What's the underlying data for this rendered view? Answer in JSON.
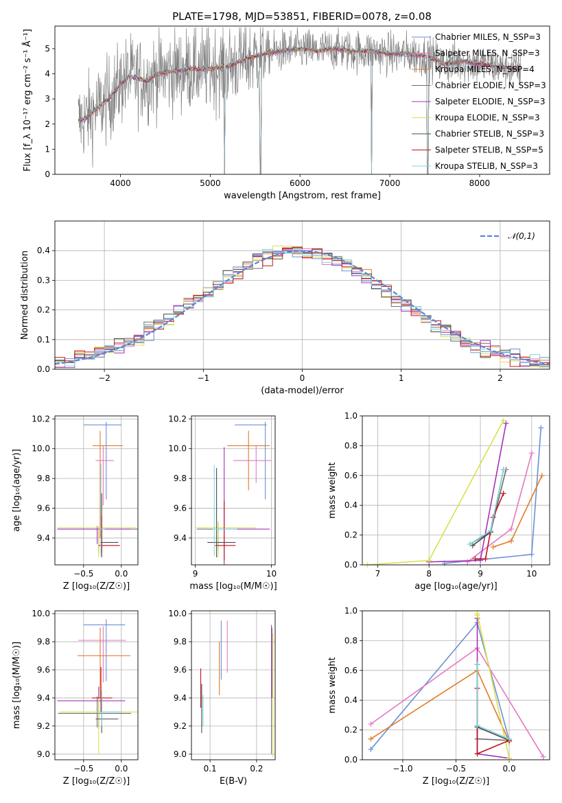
{
  "figure": {
    "title": "PLATE=1798, MJD=53851, FIBERID=0078, z=0.08"
  },
  "colors": {
    "series": [
      "#6a8fd6",
      "#e377c2",
      "#e07b26",
      "#6e6e6e",
      "#a630b8",
      "#d9e04a",
      "#4a4a4a",
      "#c1121f",
      "#7fd6e0"
    ],
    "normal": "#5b84d6",
    "grid": "#b0b0b0"
  },
  "chart_data": [
    {
      "id": "spectrum",
      "type": "line",
      "xlabel": "wavelength [Angstrom, rest frame]",
      "ylabel": "Flux [f_λ 10⁻¹⁷ erg cm⁻² s⁻¹ Å⁻¹]",
      "xlim": [
        3270,
        8780
      ],
      "ylim": [
        0,
        5.9
      ],
      "xticks": [
        4000,
        5000,
        6000,
        7000,
        8000
      ],
      "yticks": [
        0,
        1,
        2,
        3,
        4,
        5
      ],
      "grid": false,
      "legend_position": "top-right",
      "series": [
        {
          "name": "Chabrier MILES, N_SSP=3"
        },
        {
          "name": "Salpeter MILES, N_SSP=3"
        },
        {
          "name": "Kroupa MILES, N_SSP=4"
        },
        {
          "name": "Chabrier ELODIE, N_SSP=3"
        },
        {
          "name": "Salpeter ELODIE, N_SSP=3"
        },
        {
          "name": "Kroupa ELODIE, N_SSP=3"
        },
        {
          "name": "Chabrier STELIB, N_SSP=3"
        },
        {
          "name": "Salpeter STELIB, N_SSP=5"
        },
        {
          "name": "Kroupa STELIB, N_SSP=3"
        }
      ],
      "model_continuum": {
        "x": [
          3500,
          3600,
          3700,
          3800,
          3900,
          4000,
          4100,
          4200,
          4300,
          4400,
          4600,
          4800,
          5000,
          5200,
          5400,
          5600,
          5800,
          6000,
          6200,
          6400,
          6600,
          6800,
          7000,
          7200,
          7400,
          7600,
          7800,
          8000,
          8200,
          8400,
          8500
        ],
        "y": [
          2.1,
          2.2,
          2.5,
          2.8,
          3.1,
          3.6,
          3.9,
          3.8,
          3.7,
          4.0,
          4.1,
          4.2,
          4.2,
          4.3,
          4.6,
          4.8,
          4.9,
          5.0,
          4.9,
          5.0,
          4.9,
          4.9,
          4.8,
          4.8,
          4.7,
          4.4,
          4.5,
          4.4,
          4.3,
          4.2,
          4.2
        ]
      },
      "observed_range": [
        3530,
        8460
      ]
    },
    {
      "id": "residuals",
      "type": "line",
      "xlabel": "(data-model)/error",
      "ylabel": "Normed distribution",
      "xlim": [
        -2.5,
        2.5
      ],
      "ylim": [
        0,
        0.5
      ],
      "xticks": [
        -2,
        -1,
        0,
        1,
        2
      ],
      "yticks": [
        0.0,
        0.1,
        0.2,
        0.3,
        0.4
      ],
      "grid": true,
      "legend_position": "top-right",
      "legend": "𝒩(0,1)",
      "bin_width": 0.1
    },
    {
      "id": "age-vs-Z",
      "type": "scatter",
      "xlabel": "Z [log₁₀(Z/Z☉)]",
      "ylabel": "age  [log₁₀(age/yr)]",
      "xlim": [
        -0.88,
        0.22
      ],
      "ylim": [
        9.22,
        10.22
      ],
      "xticks": [
        -0.5,
        0.0
      ],
      "yticks": [
        9.4,
        9.6,
        9.8,
        10.0,
        10.2
      ],
      "grid": true,
      "points": [
        {
          "x": -0.2,
          "xerr": [
            0.3,
            0.2
          ],
          "y": 10.16,
          "yerr": [
            0.5,
            0.02
          ]
        },
        {
          "x": -0.24,
          "xerr": [
            0.1,
            0.14
          ],
          "y": 9.92,
          "yerr": [
            0.3,
            0.1
          ]
        },
        {
          "x": -0.28,
          "xerr": [
            0.1,
            0.3
          ],
          "y": 10.02,
          "yerr": [
            0.62,
            0.1
          ]
        },
        {
          "x": -0.3,
          "xerr": [
            0.55,
            0.52
          ],
          "y": 9.46,
          "yerr": [
            0.16,
            0.01
          ]
        },
        {
          "x": -0.32,
          "xerr": [
            0.52,
            0.45
          ],
          "y": 9.46,
          "yerr": [
            0.1,
            0.02
          ]
        },
        {
          "x": -0.3,
          "xerr": [
            0.55,
            0.5
          ],
          "y": 9.47,
          "yerr": [
            0.2,
            0.01
          ]
        },
        {
          "x": -0.26,
          "xerr": [
            0.02,
            0.22
          ],
          "y": 9.37,
          "yerr": [
            0.1,
            0.33
          ]
        },
        {
          "x": -0.26,
          "xerr": [
            0.04,
            0.24
          ],
          "y": 9.35,
          "yerr": [
            0.05,
            0.2
          ]
        },
        {
          "x": -0.27,
          "xerr": [
            0.02,
            0.05
          ],
          "y": 9.46,
          "yerr": [
            0.18,
            0.44
          ]
        }
      ]
    },
    {
      "id": "age-vs-mass",
      "type": "scatter",
      "xlabel": "mass [log₁₀(M/M☉)]",
      "ylabel": "",
      "xlim": [
        8.95,
        10.05
      ],
      "ylim": [
        9.22,
        10.22
      ],
      "xticks": [
        9,
        10
      ],
      "yticks": [
        9.4,
        9.6,
        9.8,
        10.0,
        10.2
      ],
      "grid": true,
      "points": [
        {
          "x": 9.92,
          "xerr": [
            0.4,
            0.02
          ],
          "y": 10.16,
          "yerr": [
            0.5,
            0.02
          ]
        },
        {
          "x": 9.8,
          "xerr": [
            0.3,
            0.2
          ],
          "y": 9.92,
          "yerr": [
            0.15,
            0.1
          ]
        },
        {
          "x": 9.7,
          "xerr": [
            0.28,
            0.28
          ],
          "y": 10.02,
          "yerr": [
            0.3,
            0.1
          ]
        },
        {
          "x": 9.3,
          "xerr": [
            0.28,
            0.5
          ],
          "y": 9.46,
          "yerr": [
            0.14,
            0.05
          ]
        },
        {
          "x": 9.38,
          "xerr": [
            0.1,
            0.6
          ],
          "y": 9.46,
          "yerr": [
            0.25,
            0.55
          ]
        },
        {
          "x": 9.3,
          "xerr": [
            0.3,
            0.5
          ],
          "y": 9.47,
          "yerr": [
            0.2,
            0.04
          ]
        },
        {
          "x": 9.28,
          "xerr": [
            0.12,
            0.25
          ],
          "y": 9.37,
          "yerr": [
            0.1,
            0.5
          ]
        },
        {
          "x": 9.38,
          "xerr": [
            0.12,
            0.15
          ],
          "y": 9.35,
          "yerr": [
            0.1,
            0.3
          ]
        },
        {
          "x": 9.25,
          "xerr": [
            0.02,
            0.3
          ],
          "y": 9.46,
          "yerr": [
            0.18,
            0.43
          ]
        }
      ]
    },
    {
      "id": "weight-vs-age",
      "type": "line",
      "xlabel": "age  [log₁₀(age/yr)]",
      "ylabel": "mass weight",
      "xlim": [
        6.7,
        10.35
      ],
      "ylim": [
        0,
        1
      ],
      "xticks": [
        7,
        8,
        9,
        10
      ],
      "yticks": [
        0.0,
        0.2,
        0.4,
        0.6,
        0.8,
        1.0
      ],
      "grid": true,
      "series": [
        {
          "x": [
            8.3,
            10.0,
            10.18
          ],
          "y": [
            0.01,
            0.07,
            0.92
          ]
        },
        {
          "x": [
            8.75,
            9.6,
            10.0
          ],
          "y": [
            0.02,
            0.24,
            0.75
          ]
        },
        {
          "x": [
            9.25,
            9.6,
            10.2
          ],
          "y": [
            0.12,
            0.16,
            0.6
          ]
        },
        {
          "x": [
            8.8,
            9.2,
            9.5
          ],
          "y": [
            0.14,
            0.22,
            0.64
          ]
        },
        {
          "x": [
            8.0,
            9.0,
            9.5
          ],
          "y": [
            0.02,
            0.03,
            0.95
          ]
        },
        {
          "x": [
            6.8,
            8.0,
            9.45
          ],
          "y": [
            0.0,
            0.03,
            0.97
          ]
        },
        {
          "x": [
            8.85,
            9.2,
            9.45
          ],
          "y": [
            0.13,
            0.22,
            0.64
          ]
        },
        {
          "x": [
            8.9,
            9.1,
            9.25,
            9.45
          ],
          "y": [
            0.04,
            0.04,
            0.32,
            0.48
          ]
        },
        {
          "x": [
            8.8,
            9.2,
            9.45
          ],
          "y": [
            0.14,
            0.23,
            0.64
          ]
        }
      ]
    },
    {
      "id": "mass-vs-Z",
      "type": "scatter",
      "xlabel": "Z [log₁₀(Z/Z☉)]",
      "ylabel": "mass [log₁₀(M/M☉)]",
      "xlim": [
        -0.88,
        0.22
      ],
      "ylim": [
        8.96,
        10.02
      ],
      "xticks": [
        -0.5,
        0.0
      ],
      "yticks": [
        9.0,
        9.2,
        9.4,
        9.6,
        9.8,
        10.0
      ],
      "grid": true,
      "points": [
        {
          "x": -0.2,
          "xerr": [
            0.3,
            0.25
          ],
          "y": 9.92,
          "yerr": [
            0.4,
            0.04
          ]
        },
        {
          "x": -0.24,
          "xerr": [
            0.33,
            0.3
          ],
          "y": 9.81,
          "yerr": [
            0.3,
            0.1
          ]
        },
        {
          "x": -0.28,
          "xerr": [
            0.3,
            0.4
          ],
          "y": 9.7,
          "yerr": [
            0.3,
            0.2
          ]
        },
        {
          "x": -0.32,
          "xerr": [
            0.52,
            0.45
          ],
          "y": 9.29,
          "yerr": [
            0.1,
            0.12
          ]
        },
        {
          "x": -0.3,
          "xerr": [
            0.55,
            0.35
          ],
          "y": 9.38,
          "yerr": [
            0.2,
            0.1
          ]
        },
        {
          "x": -0.3,
          "xerr": [
            0.52,
            0.52
          ],
          "y": 9.3,
          "yerr": [
            0.3,
            0.1
          ]
        },
        {
          "x": -0.26,
          "xerr": [
            0.08,
            0.22
          ],
          "y": 9.25,
          "yerr": [
            0.1,
            0.15
          ]
        },
        {
          "x": -0.27,
          "xerr": [
            0.12,
            0.15
          ],
          "y": 9.4,
          "yerr": [
            0.1,
            0.22
          ]
        },
        {
          "x": -0.26,
          "xerr": [
            0.04,
            0.26
          ],
          "y": 9.3,
          "yerr": [
            0.1,
            0.15
          ]
        }
      ]
    },
    {
      "id": "mass-vs-EBV",
      "type": "scatter",
      "xlabel": "E(B-V)",
      "ylabel": "",
      "xlim": [
        0.06,
        0.24
      ],
      "ylim": [
        8.96,
        10.02
      ],
      "xticks": [
        0.1,
        0.2
      ],
      "yticks": [
        9.0,
        9.2,
        9.4,
        9.6,
        9.8,
        10.0
      ],
      "grid": true,
      "points": [
        {
          "x": 0.124,
          "y": 9.75,
          "yerr": [
            0.22,
            0.2
          ]
        },
        {
          "x": 0.137,
          "y": 9.8,
          "yerr": [
            0.22,
            0.15
          ]
        },
        {
          "x": 0.12,
          "y": 9.6,
          "yerr": [
            0.18,
            0.2
          ]
        },
        {
          "x": 0.232,
          "y": 9.5,
          "yerr": [
            0.5,
            0.42
          ]
        },
        {
          "x": 0.233,
          "y": 9.6,
          "yerr": [
            0.2,
            0.3
          ]
        },
        {
          "x": 0.235,
          "y": 9.4,
          "yerr": [
            0.42,
            0.46
          ]
        },
        {
          "x": 0.082,
          "y": 9.3,
          "yerr": [
            0.15,
            0.2
          ]
        },
        {
          "x": 0.08,
          "y": 9.45,
          "yerr": [
            0.12,
            0.16
          ]
        },
        {
          "x": 0.085,
          "y": 9.3,
          "yerr": [
            0.1,
            0.12
          ]
        }
      ]
    },
    {
      "id": "weight-vs-Z",
      "type": "line",
      "xlabel": "Z [log₁₀(Z/Z☉)]",
      "ylabel": "mass weight",
      "xlim": [
        -1.38,
        0.38
      ],
      "ylim": [
        0,
        1
      ],
      "xticks": [
        -1.0,
        -0.5,
        0.0
      ],
      "yticks": [
        0.0,
        0.2,
        0.4,
        0.6,
        0.8,
        1.0
      ],
      "grid": true,
      "series": [
        {
          "x": [
            -1.3,
            -0.3,
            0.0
          ],
          "y": [
            0.07,
            0.92,
            0.13
          ]
        },
        {
          "x": [
            -1.3,
            -0.3,
            0.32
          ],
          "y": [
            0.24,
            0.75,
            0.02
          ]
        },
        {
          "x": [
            -1.3,
            -0.3,
            0.0
          ],
          "y": [
            0.14,
            0.6,
            0.12
          ]
        },
        {
          "x": [
            -0.3,
            -0.3,
            0.0
          ],
          "y": [
            0.64,
            0.14,
            0.13
          ]
        },
        {
          "x": [
            -0.3,
            -0.3,
            0.0
          ],
          "y": [
            0.95,
            0.04,
            0.01
          ]
        },
        {
          "x": [
            -0.3,
            -0.3,
            0.0
          ],
          "y": [
            0.97,
            0.98,
            0.01
          ]
        },
        {
          "x": [
            -0.3,
            -0.3,
            0.0
          ],
          "y": [
            0.64,
            0.22,
            0.13
          ]
        },
        {
          "x": [
            -0.3,
            -0.3,
            0.0
          ],
          "y": [
            0.48,
            0.04,
            0.13
          ]
        },
        {
          "x": [
            -0.3,
            -0.3,
            0.0
          ],
          "y": [
            0.64,
            0.23,
            0.14
          ]
        }
      ]
    }
  ]
}
